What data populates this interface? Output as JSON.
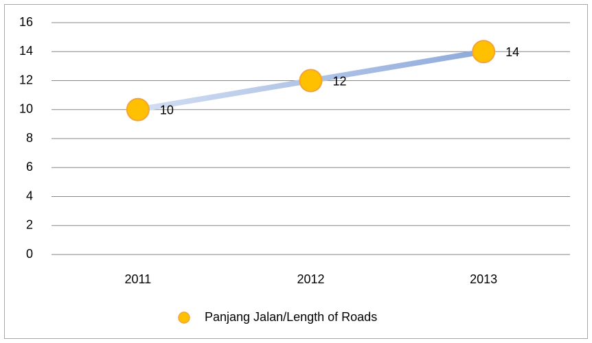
{
  "chart_data": {
    "type": "line",
    "categories": [
      "2011",
      "2012",
      "2013"
    ],
    "series": [
      {
        "name": "Panjang Jalan/Length of Roads",
        "color": "#ffc000",
        "line_color": "#a9bfe6",
        "values": [
          10,
          12,
          14
        ]
      }
    ],
    "ylim": [
      0,
      16
    ],
    "yticks": [
      0,
      2,
      4,
      6,
      8,
      10,
      12,
      14,
      16
    ],
    "grid": true,
    "legend": "bottom",
    "data_labels": true
  }
}
